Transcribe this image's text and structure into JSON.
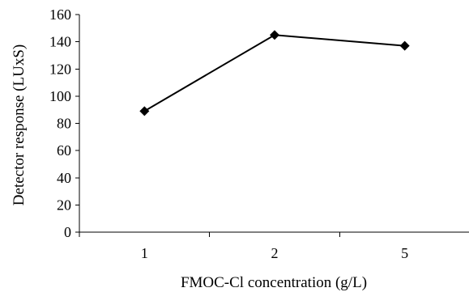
{
  "chart_data": {
    "type": "line",
    "categories": [
      "1",
      "2",
      "5"
    ],
    "series": [
      {
        "values": [
          89,
          145,
          137
        ],
        "color": "#000000",
        "marker": "diamond"
      }
    ],
    "xlabel": "FMOC-Cl concentration (g/L)",
    "ylabel": "Detector response (LUxS)",
    "ylim": [
      0,
      160
    ],
    "yticks": [
      "0",
      "20",
      "40",
      "60",
      "80",
      "100",
      "120",
      "140",
      "160"
    ],
    "grid": false,
    "legend": "none"
  }
}
